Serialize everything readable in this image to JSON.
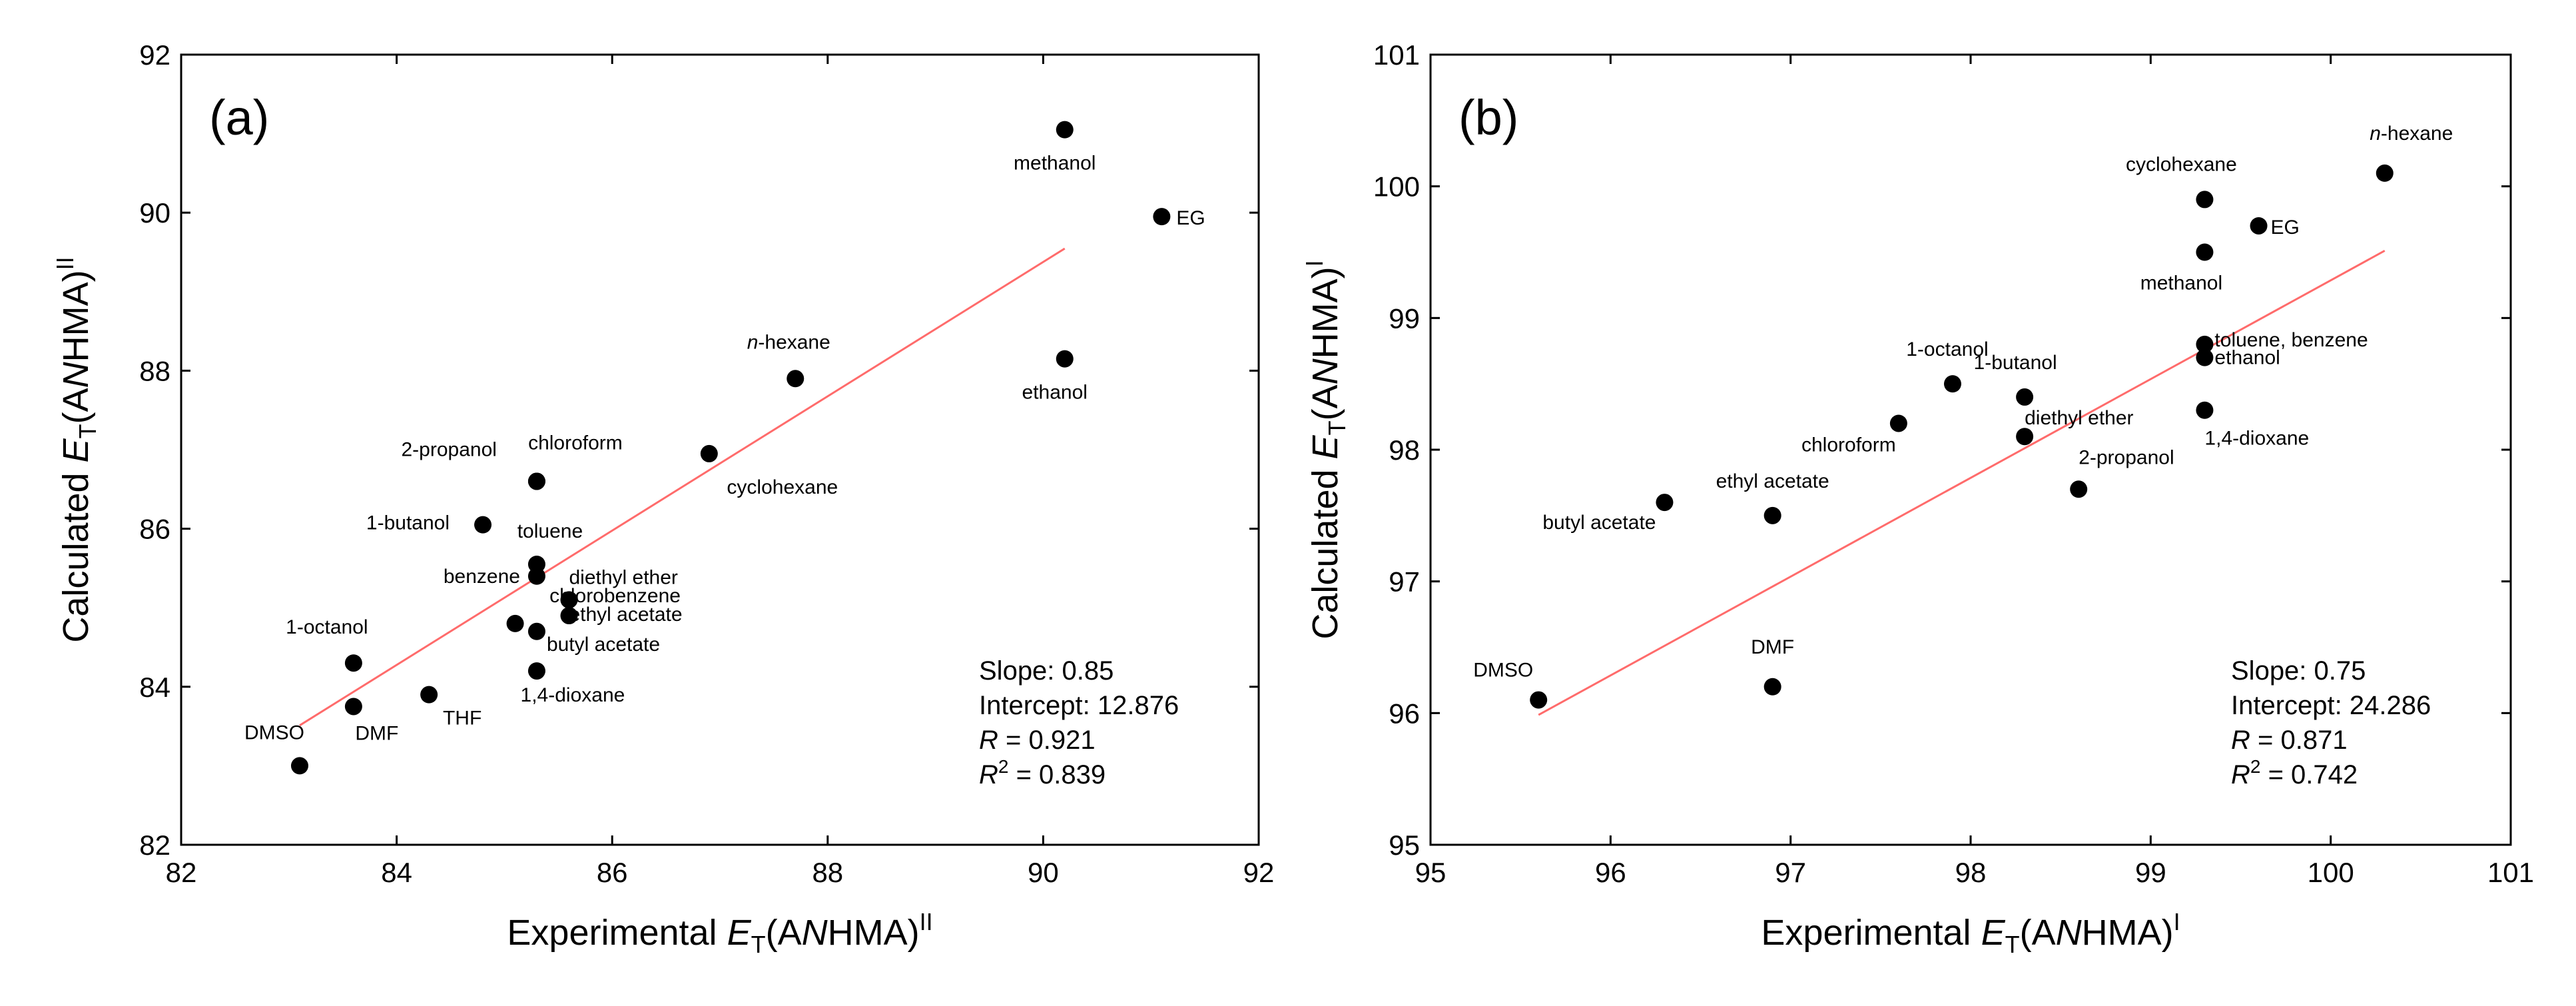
{
  "chart_data": [
    {
      "type": "scatter",
      "panel_label": "(a)",
      "xlabel": {
        "prefix": "Experimental ",
        "symbol": "E",
        "sub": "T",
        "middle": "(A",
        "italic": "N",
        "suffix": "HMA)",
        "sup": "II"
      },
      "ylabel": {
        "prefix": "Calculated ",
        "symbol": "E",
        "sub": "T",
        "middle": "(A",
        "italic": "N",
        "suffix": "HMA)",
        "sup": "II"
      },
      "xlim": [
        82,
        92
      ],
      "ylim": [
        82,
        92
      ],
      "xticks": [
        82,
        84,
        86,
        88,
        90,
        92
      ],
      "yticks": [
        82,
        84,
        86,
        88,
        90,
        92
      ],
      "points": [
        {
          "label": "DMSO",
          "x": 83.1,
          "y": 83.0
        },
        {
          "label": "DMF",
          "x": 83.6,
          "y": 83.75
        },
        {
          "label": "1-octanol",
          "x": 83.6,
          "y": 84.3
        },
        {
          "label": "THF",
          "x": 84.3,
          "y": 83.9
        },
        {
          "label": "1-butanol",
          "x": 84.8,
          "y": 86.05
        },
        {
          "label": "chlorobenzene",
          "x": 85.1,
          "y": 84.8
        },
        {
          "label": "chloroform",
          "x": 85.3,
          "y": 86.6
        },
        {
          "label": "2-propanol",
          "x": 85.3,
          "y": 86.6
        },
        {
          "label": "toluene",
          "x": 85.3,
          "y": 85.55
        },
        {
          "label": "benzene",
          "x": 85.3,
          "y": 85.4
        },
        {
          "label": "butyl acetate",
          "x": 85.3,
          "y": 84.7
        },
        {
          "label": "1,4-dioxane",
          "x": 85.3,
          "y": 84.2
        },
        {
          "label": "diethyl ether",
          "x": 85.6,
          "y": 85.1
        },
        {
          "label": "ethyl acetate",
          "x": 85.6,
          "y": 84.9
        },
        {
          "label": "cyclohexane",
          "x": 86.9,
          "y": 86.95
        },
        {
          "label": "n-hexane",
          "x": 87.7,
          "y": 87.9
        },
        {
          "label": "methanol",
          "x": 90.2,
          "y": 91.05
        },
        {
          "label": "ethanol",
          "x": 90.2,
          "y": 88.15
        },
        {
          "label": "EG",
          "x": 91.1,
          "y": 89.95
        }
      ],
      "fit_line": {
        "slope": 0.85,
        "intercept": 12.876,
        "x_range": [
          83.1,
          90.2
        ],
        "color": "#ff6b6b"
      },
      "stats": {
        "slope_text": "Slope: 0.85",
        "intercept_text": "Intercept: 12.876",
        "r_label": "R",
        "r_value": " = 0.921",
        "r2_label": "R",
        "r2_sup": "2",
        "r2_value": " = 0.839"
      }
    },
    {
      "type": "scatter",
      "panel_label": "(b)",
      "xlabel": {
        "prefix": "Experimental ",
        "symbol": "E",
        "sub": "T",
        "middle": "(A",
        "italic": "N",
        "suffix": "HMA)",
        "sup": "I"
      },
      "ylabel": {
        "prefix": "Calculated ",
        "symbol": "E",
        "sub": "T",
        "middle": "(A",
        "italic": "N",
        "suffix": "HMA)",
        "sup": "I"
      },
      "xlim": [
        95,
        101
      ],
      "ylim": [
        95,
        101
      ],
      "xticks": [
        95,
        96,
        97,
        98,
        99,
        100,
        101
      ],
      "yticks": [
        95,
        96,
        97,
        98,
        99,
        100,
        101
      ],
      "points": [
        {
          "label": "DMSO",
          "x": 95.6,
          "y": 96.1
        },
        {
          "label": "butyl acetate",
          "x": 96.3,
          "y": 97.6
        },
        {
          "label": "DMF",
          "x": 96.9,
          "y": 96.2
        },
        {
          "label": "ethyl acetate",
          "x": 96.9,
          "y": 97.5
        },
        {
          "label": "chloroform",
          "x": 97.6,
          "y": 98.2
        },
        {
          "label": "1-octanol",
          "x": 97.9,
          "y": 98.5
        },
        {
          "label": "1-butanol",
          "x": 98.3,
          "y": 98.4
        },
        {
          "label": "diethyl ether",
          "x": 98.3,
          "y": 98.1
        },
        {
          "label": "2-propanol",
          "x": 98.6,
          "y": 97.7
        },
        {
          "label": "cyclohexane",
          "x": 99.3,
          "y": 99.9
        },
        {
          "label": "methanol",
          "x": 99.3,
          "y": 99.5
        },
        {
          "label": "toluene, benzene",
          "x": 99.3,
          "y": 98.8
        },
        {
          "label": "ethanol",
          "x": 99.3,
          "y": 98.7
        },
        {
          "label": "1,4-dioxane",
          "x": 99.3,
          "y": 98.3
        },
        {
          "label": "EG",
          "x": 99.6,
          "y": 99.7
        },
        {
          "label": "n-hexane",
          "x": 100.3,
          "y": 100.1
        }
      ],
      "fit_line": {
        "slope": 0.75,
        "intercept": 24.286,
        "x_range": [
          95.6,
          100.3
        ],
        "color": "#ff6b6b"
      },
      "stats": {
        "slope_text": "Slope: 0.75",
        "intercept_text": "Intercept: 24.286",
        "r_label": "R",
        "r_value": " = 0.871",
        "r2_label": "R",
        "r2_sup": "2",
        "r2_value": " = 0.742"
      }
    }
  ]
}
